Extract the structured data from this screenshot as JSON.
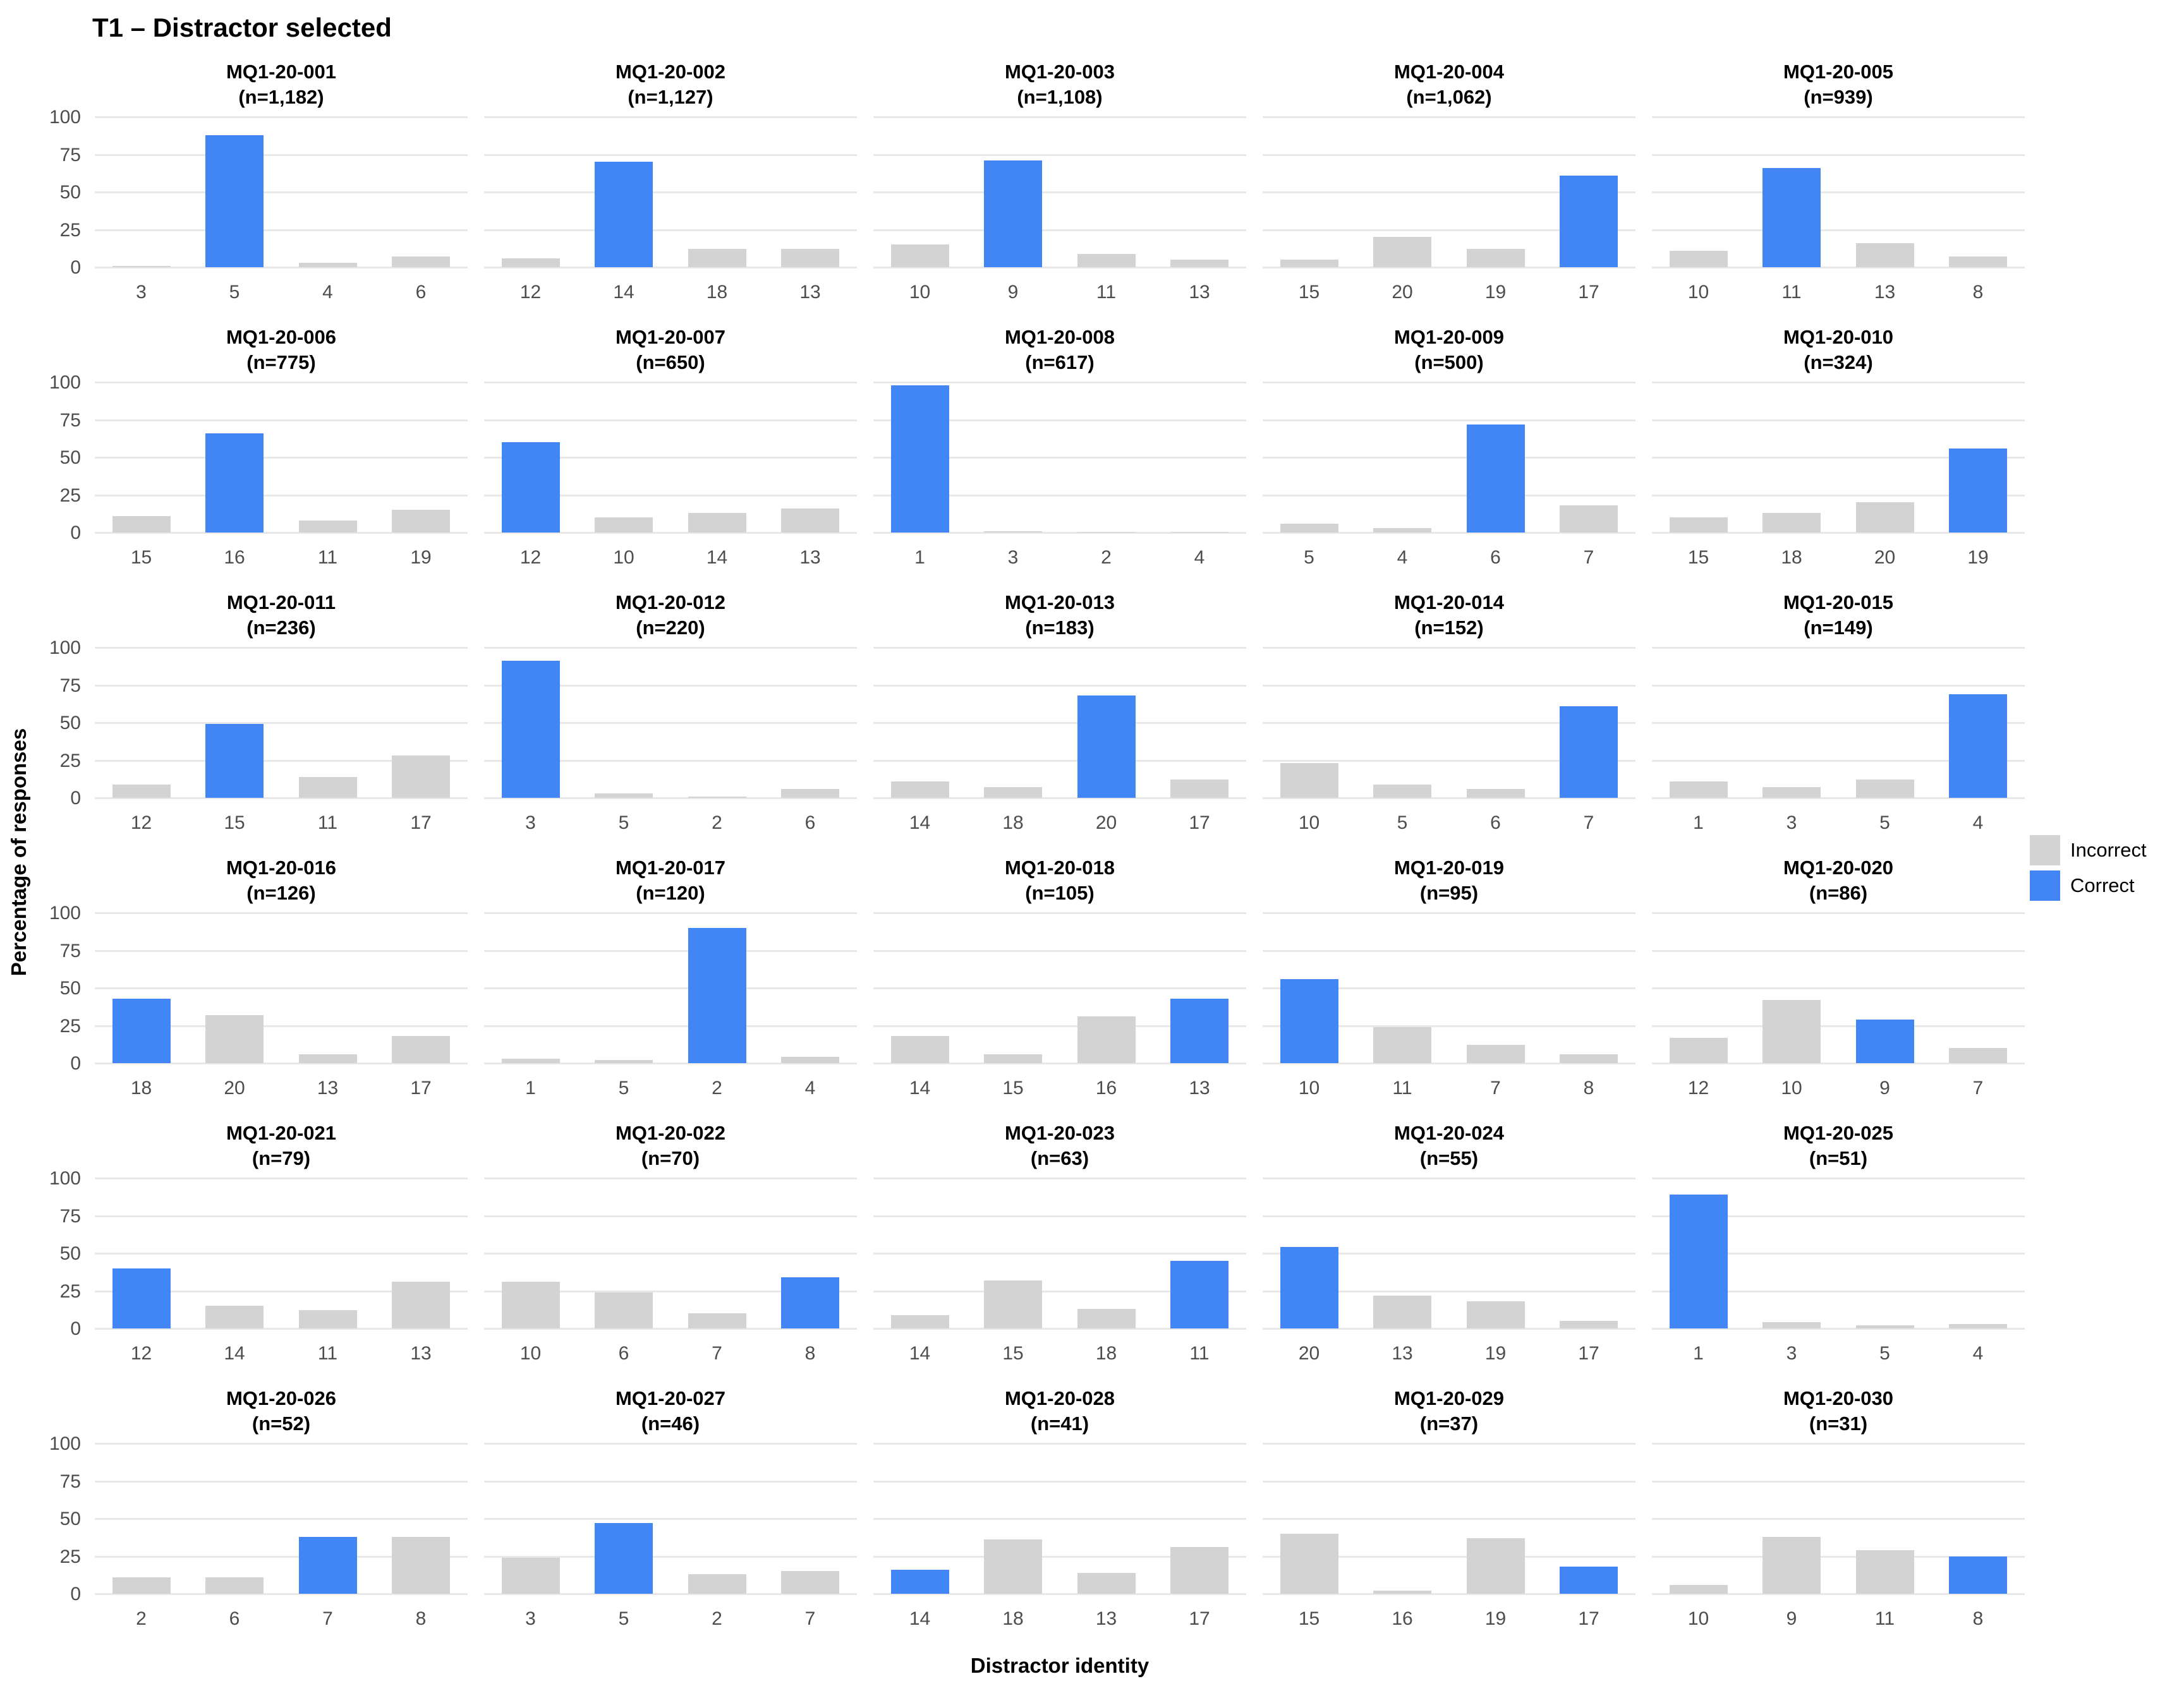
{
  "title": "T1 – Distractor selected",
  "y_axis_label": "Percentage of responses",
  "x_axis_label": "Distractor identity",
  "y_ticks": [
    100,
    75,
    50,
    25,
    0
  ],
  "colors": {
    "correct": "#4285f4",
    "incorrect": "#d3d3d3",
    "gridline": "#e8e8e8",
    "tick_text": "#4d4d4d"
  },
  "legend": {
    "position": "right-middle",
    "items": [
      {
        "label": "Incorrect",
        "color": "#d3d3d3"
      },
      {
        "label": "Correct",
        "color": "#4285f4"
      }
    ]
  },
  "chart_data": {
    "type": "bar",
    "title": "T1 – Distractor selected",
    "xlabel": "Distractor identity",
    "ylabel": "Percentage of responses",
    "ylim": [
      0,
      100
    ],
    "grid": "horizontal",
    "legend_position": "right-middle",
    "facet_layout": {
      "rows": 6,
      "cols": 5
    },
    "facets": [
      {
        "id": "MQ1-20-001",
        "n_label": "(n=1,182)",
        "categories": [
          "3",
          "5",
          "4",
          "6"
        ],
        "values": [
          1,
          88,
          3,
          7
        ],
        "correct_index": 1
      },
      {
        "id": "MQ1-20-002",
        "n_label": "(n=1,127)",
        "categories": [
          "12",
          "14",
          "18",
          "13"
        ],
        "values": [
          6,
          70,
          12,
          12
        ],
        "correct_index": 1
      },
      {
        "id": "MQ1-20-003",
        "n_label": "(n=1,108)",
        "categories": [
          "10",
          "9",
          "11",
          "13"
        ],
        "values": [
          15,
          71,
          9,
          5
        ],
        "correct_index": 1
      },
      {
        "id": "MQ1-20-004",
        "n_label": "(n=1,062)",
        "categories": [
          "15",
          "20",
          "19",
          "17"
        ],
        "values": [
          5,
          20,
          12,
          61
        ],
        "correct_index": 3
      },
      {
        "id": "MQ1-20-005",
        "n_label": "(n=939)",
        "categories": [
          "10",
          "11",
          "13",
          "8"
        ],
        "values": [
          11,
          66,
          16,
          7
        ],
        "correct_index": 1
      },
      {
        "id": "MQ1-20-006",
        "n_label": "(n=775)",
        "categories": [
          "15",
          "16",
          "11",
          "19"
        ],
        "values": [
          11,
          66,
          8,
          15
        ],
        "correct_index": 1
      },
      {
        "id": "MQ1-20-007",
        "n_label": "(n=650)",
        "categories": [
          "12",
          "10",
          "14",
          "13"
        ],
        "values": [
          60,
          10,
          13,
          16
        ],
        "correct_index": 0
      },
      {
        "id": "MQ1-20-008",
        "n_label": "(n=617)",
        "categories": [
          "1",
          "3",
          "2",
          "4"
        ],
        "values": [
          98,
          1,
          0.5,
          0.5
        ],
        "correct_index": 0
      },
      {
        "id": "MQ1-20-009",
        "n_label": "(n=500)",
        "categories": [
          "5",
          "4",
          "6",
          "7"
        ],
        "values": [
          6,
          3,
          72,
          18
        ],
        "correct_index": 2
      },
      {
        "id": "MQ1-20-010",
        "n_label": "(n=324)",
        "categories": [
          "15",
          "18",
          "20",
          "19"
        ],
        "values": [
          10,
          13,
          20,
          56
        ],
        "correct_index": 3
      },
      {
        "id": "MQ1-20-011",
        "n_label": "(n=236)",
        "categories": [
          "12",
          "15",
          "11",
          "17"
        ],
        "values": [
          9,
          49,
          14,
          28
        ],
        "correct_index": 1
      },
      {
        "id": "MQ1-20-012",
        "n_label": "(n=220)",
        "categories": [
          "3",
          "5",
          "2",
          "6"
        ],
        "values": [
          91,
          3,
          1,
          6
        ],
        "correct_index": 0
      },
      {
        "id": "MQ1-20-013",
        "n_label": "(n=183)",
        "categories": [
          "14",
          "18",
          "20",
          "17"
        ],
        "values": [
          11,
          7,
          68,
          12
        ],
        "correct_index": 2
      },
      {
        "id": "MQ1-20-014",
        "n_label": "(n=152)",
        "categories": [
          "10",
          "5",
          "6",
          "7"
        ],
        "values": [
          23,
          9,
          6,
          61
        ],
        "correct_index": 3
      },
      {
        "id": "MQ1-20-015",
        "n_label": "(n=149)",
        "categories": [
          "1",
          "3",
          "5",
          "4"
        ],
        "values": [
          11,
          7,
          12,
          69
        ],
        "correct_index": 3
      },
      {
        "id": "MQ1-20-016",
        "n_label": "(n=126)",
        "categories": [
          "18",
          "20",
          "13",
          "17"
        ],
        "values": [
          43,
          32,
          6,
          18
        ],
        "correct_index": 0
      },
      {
        "id": "MQ1-20-017",
        "n_label": "(n=120)",
        "categories": [
          "1",
          "5",
          "2",
          "4"
        ],
        "values": [
          3,
          2,
          90,
          4
        ],
        "correct_index": 2
      },
      {
        "id": "MQ1-20-018",
        "n_label": "(n=105)",
        "categories": [
          "14",
          "15",
          "16",
          "13"
        ],
        "values": [
          18,
          6,
          31,
          43
        ],
        "correct_index": 3
      },
      {
        "id": "MQ1-20-019",
        "n_label": "(n=95)",
        "categories": [
          "10",
          "11",
          "7",
          "8"
        ],
        "values": [
          56,
          24,
          12,
          6
        ],
        "correct_index": 0
      },
      {
        "id": "MQ1-20-020",
        "n_label": "(n=86)",
        "categories": [
          "12",
          "10",
          "9",
          "7"
        ],
        "values": [
          17,
          42,
          29,
          10
        ],
        "correct_index": 2
      },
      {
        "id": "MQ1-20-021",
        "n_label": "(n=79)",
        "categories": [
          "12",
          "14",
          "11",
          "13"
        ],
        "values": [
          40,
          15,
          12,
          31
        ],
        "correct_index": 0
      },
      {
        "id": "MQ1-20-022",
        "n_label": "(n=70)",
        "categories": [
          "10",
          "6",
          "7",
          "8"
        ],
        "values": [
          31,
          24,
          10,
          34
        ],
        "correct_index": 3
      },
      {
        "id": "MQ1-20-023",
        "n_label": "(n=63)",
        "categories": [
          "14",
          "15",
          "18",
          "11"
        ],
        "values": [
          9,
          32,
          13,
          45
        ],
        "correct_index": 3
      },
      {
        "id": "MQ1-20-024",
        "n_label": "(n=55)",
        "categories": [
          "20",
          "13",
          "19",
          "17"
        ],
        "values": [
          54,
          22,
          18,
          5
        ],
        "correct_index": 0
      },
      {
        "id": "MQ1-20-025",
        "n_label": "(n=51)",
        "categories": [
          "1",
          "3",
          "5",
          "4"
        ],
        "values": [
          89,
          4,
          2,
          3
        ],
        "correct_index": 0
      },
      {
        "id": "MQ1-20-026",
        "n_label": "(n=52)",
        "categories": [
          "2",
          "6",
          "7",
          "8"
        ],
        "values": [
          11,
          11,
          38,
          38
        ],
        "correct_index": 2
      },
      {
        "id": "MQ1-20-027",
        "n_label": "(n=46)",
        "categories": [
          "3",
          "5",
          "2",
          "7"
        ],
        "values": [
          24,
          47,
          13,
          15
        ],
        "correct_index": 1
      },
      {
        "id": "MQ1-20-028",
        "n_label": "(n=41)",
        "categories": [
          "14",
          "18",
          "13",
          "17"
        ],
        "values": [
          16,
          36,
          14,
          31
        ],
        "correct_index": 0
      },
      {
        "id": "MQ1-20-029",
        "n_label": "(n=37)",
        "categories": [
          "15",
          "16",
          "19",
          "17"
        ],
        "values": [
          40,
          2,
          37,
          18
        ],
        "correct_index": 3
      },
      {
        "id": "MQ1-20-030",
        "n_label": "(n=31)",
        "categories": [
          "10",
          "9",
          "11",
          "8"
        ],
        "values": [
          6,
          38,
          29,
          25
        ],
        "correct_index": 3
      }
    ]
  }
}
